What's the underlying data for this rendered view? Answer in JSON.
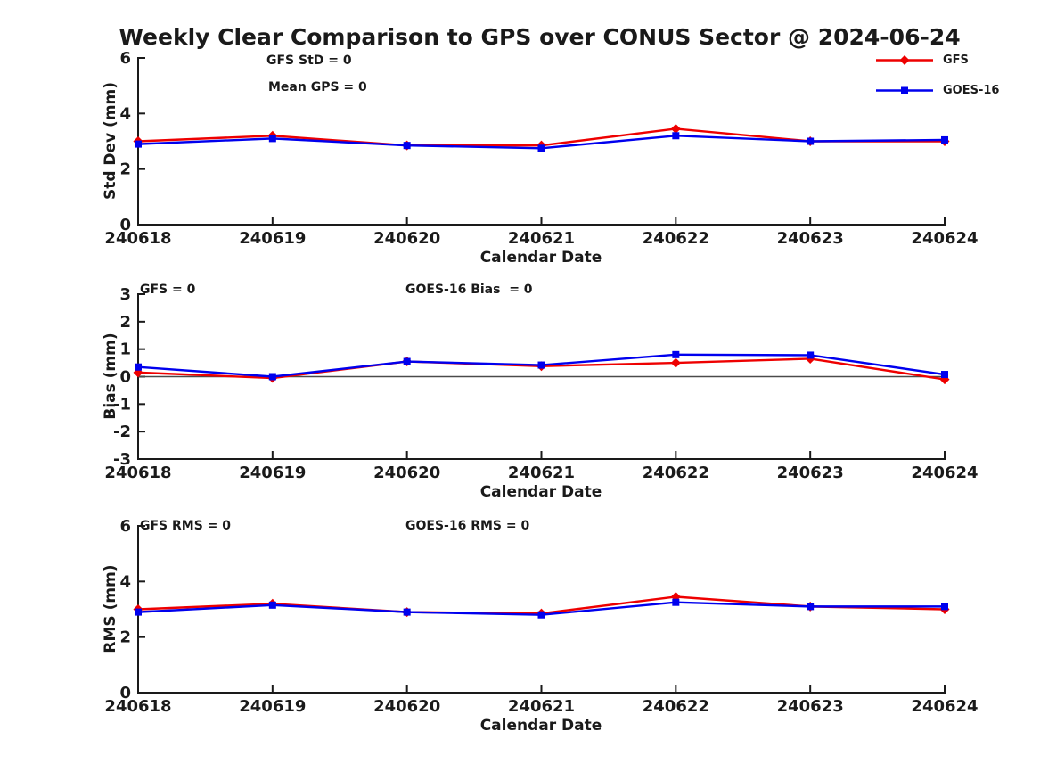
{
  "title": "Weekly Clear Comparison to GPS over CONUS Sector @ 2024-06-24",
  "colors": {
    "gfs": "#ee0000",
    "goes16": "#0000ee",
    "axis": "#1a1a1a",
    "text": "#1a1a1a",
    "zero_line": "#4a4a4a",
    "background": "#ffffff"
  },
  "legend": {
    "position": "top-right",
    "items": [
      {
        "label": "GFS",
        "marker": "diamond",
        "color": "#ee0000"
      },
      {
        "label": "GOES-16",
        "marker": "square",
        "color": "#0000ee"
      }
    ]
  },
  "chart_data": [
    {
      "type": "line",
      "title": "",
      "ylabel": "Std Dev (mm)",
      "xlabel": "Calendar Date",
      "ylim": [
        0,
        6
      ],
      "yticks": [
        0,
        2,
        4,
        6
      ],
      "grid": false,
      "zero_line": false,
      "categories": [
        "240618",
        "240619",
        "240620",
        "240621",
        "240622",
        "240623",
        "240624"
      ],
      "annotations": [
        {
          "text": "GFS StD = 0"
        },
        {
          "text": "Mean GPS = 0"
        }
      ],
      "series": [
        {
          "name": "GFS",
          "color": "#ee0000",
          "marker": "diamond",
          "values": [
            3.0,
            3.2,
            2.85,
            2.85,
            3.45,
            3.0,
            3.0
          ]
        },
        {
          "name": "GOES-16",
          "color": "#0000ee",
          "marker": "square",
          "values": [
            2.9,
            3.1,
            2.85,
            2.75,
            3.2,
            3.0,
            3.05
          ]
        }
      ]
    },
    {
      "type": "line",
      "title": "",
      "ylabel": "Bias (mm)",
      "xlabel": "Calendar Date",
      "ylim": [
        -3,
        3
      ],
      "yticks": [
        -3,
        -2,
        -1,
        0,
        1,
        2,
        3
      ],
      "grid": false,
      "zero_line": true,
      "categories": [
        "240618",
        "240619",
        "240620",
        "240621",
        "240622",
        "240623",
        "240624"
      ],
      "annotations": [
        {
          "text": "GFS = 0"
        },
        {
          "text": "GOES-16 Bias  = 0"
        }
      ],
      "series": [
        {
          "name": "GFS",
          "color": "#ee0000",
          "marker": "diamond",
          "values": [
            0.15,
            -0.05,
            0.55,
            0.38,
            0.5,
            0.65,
            -0.1
          ]
        },
        {
          "name": "GOES-16",
          "color": "#0000ee",
          "marker": "square",
          "values": [
            0.35,
            0.0,
            0.55,
            0.42,
            0.8,
            0.78,
            0.08
          ]
        }
      ]
    },
    {
      "type": "line",
      "title": "",
      "ylabel": "RMS (mm)",
      "xlabel": "Calendar Date",
      "ylim": [
        0,
        6
      ],
      "yticks": [
        0,
        2,
        4,
        6
      ],
      "grid": false,
      "zero_line": false,
      "categories": [
        "240618",
        "240619",
        "240620",
        "240621",
        "240622",
        "240623",
        "240624"
      ],
      "annotations": [
        {
          "text": "GFS RMS = 0"
        },
        {
          "text": "GOES-16 RMS = 0"
        }
      ],
      "series": [
        {
          "name": "GFS",
          "color": "#ee0000",
          "marker": "diamond",
          "values": [
            3.0,
            3.2,
            2.9,
            2.85,
            3.45,
            3.1,
            3.0
          ]
        },
        {
          "name": "GOES-16",
          "color": "#0000ee",
          "marker": "square",
          "values": [
            2.9,
            3.15,
            2.9,
            2.8,
            3.25,
            3.1,
            3.1
          ]
        }
      ]
    }
  ]
}
